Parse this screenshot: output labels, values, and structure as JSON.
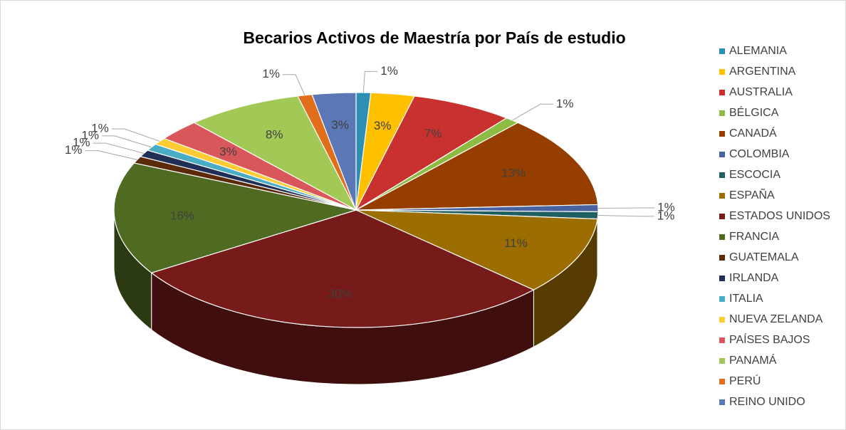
{
  "chart_data": {
    "type": "pie3d",
    "title": "Becarios Activos de Maestría por País de estudio",
    "categories": [
      "ALEMANIA",
      "ARGENTINA",
      "AUSTRALIA",
      "BÉLGICA",
      "CANADÁ",
      "COLOMBIA",
      "ESCOCIA",
      "ESPAÑA",
      "ESTADOS UNIDOS",
      "FRANCIA",
      "GUATEMALA",
      "IRLANDA",
      "ITALIA",
      "NUEVA ZELANDA",
      "PAÍSES BAJOS",
      "PANAMÁ",
      "PERÚ",
      "REINO UNIDO"
    ],
    "values": [
      1,
      3,
      7,
      1,
      13,
      1,
      1,
      11,
      30,
      16,
      1,
      1,
      1,
      1,
      3,
      8,
      1,
      3
    ],
    "value_labels": [
      "1%",
      "3%",
      "7%",
      "1%",
      "13%",
      "1%",
      "1%",
      "11%",
      "30%",
      "16%",
      "1%",
      "1%",
      "1%",
      "1%",
      "3%",
      "8%",
      "1%",
      "3%"
    ],
    "colors": [
      "#2e8fb5",
      "#ffc000",
      "#c9312f",
      "#8dbb44",
      "#953e00",
      "#4863a0",
      "#1f5f5f",
      "#9c6d00",
      "#761a1a",
      "#4f6a21",
      "#5a2a0a",
      "#1f2f55",
      "#4bacc6",
      "#ffcc33",
      "#d9565a",
      "#a2c955",
      "#e06e1a",
      "#5b77b5"
    ],
    "legend": "right"
  }
}
